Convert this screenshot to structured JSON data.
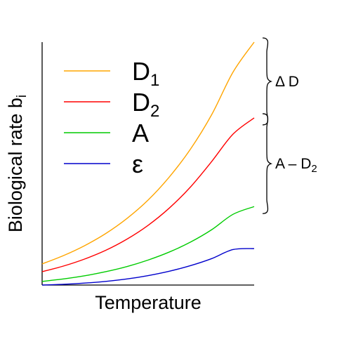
{
  "chart_data": {
    "type": "line",
    "xlabel": "Temperature",
    "ylabel": {
      "main": "Biological rate b",
      "sub": "i"
    },
    "xlim": [
      0,
      1
    ],
    "ylim": [
      0,
      1
    ],
    "x": [
      0,
      0.1,
      0.2,
      0.3,
      0.4,
      0.5,
      0.6,
      0.7,
      0.8,
      0.9,
      1.0
    ],
    "series": [
      {
        "name": {
          "main": "D",
          "sub": "1"
        },
        "color": "#FFA500",
        "values": [
          0.087,
          0.121,
          0.162,
          0.212,
          0.274,
          0.35,
          0.445,
          0.56,
          0.702,
          0.876,
          1.0
        ]
      },
      {
        "name": {
          "main": "D",
          "sub": "2"
        },
        "color": "#FF0000",
        "values": [
          0.055,
          0.078,
          0.107,
          0.143,
          0.189,
          0.246,
          0.317,
          0.404,
          0.509,
          0.621,
          0.688
        ]
      },
      {
        "name": {
          "main": "A",
          "sub": ""
        },
        "color": "#00CC00",
        "values": [
          0.015,
          0.025,
          0.038,
          0.055,
          0.076,
          0.103,
          0.136,
          0.177,
          0.228,
          0.291,
          0.323
        ]
      },
      {
        "name": {
          "main": "ε",
          "sub": ""
        },
        "color": "#0000CC",
        "values": [
          0.0,
          0.003,
          0.008,
          0.015,
          0.025,
          0.039,
          0.057,
          0.08,
          0.109,
          0.146,
          0.15
        ]
      }
    ],
    "legend_position": "top-left",
    "annotations": [
      {
        "label": {
          "main": "Δ D",
          "sub": ""
        },
        "from_series": "D1",
        "to_series": "D2",
        "at_x": 1.0
      },
      {
        "label": {
          "main": "A – D",
          "sub": "2"
        },
        "from_series": "D2",
        "to_series": "A",
        "at_x": 1.0
      }
    ],
    "grid": false
  }
}
